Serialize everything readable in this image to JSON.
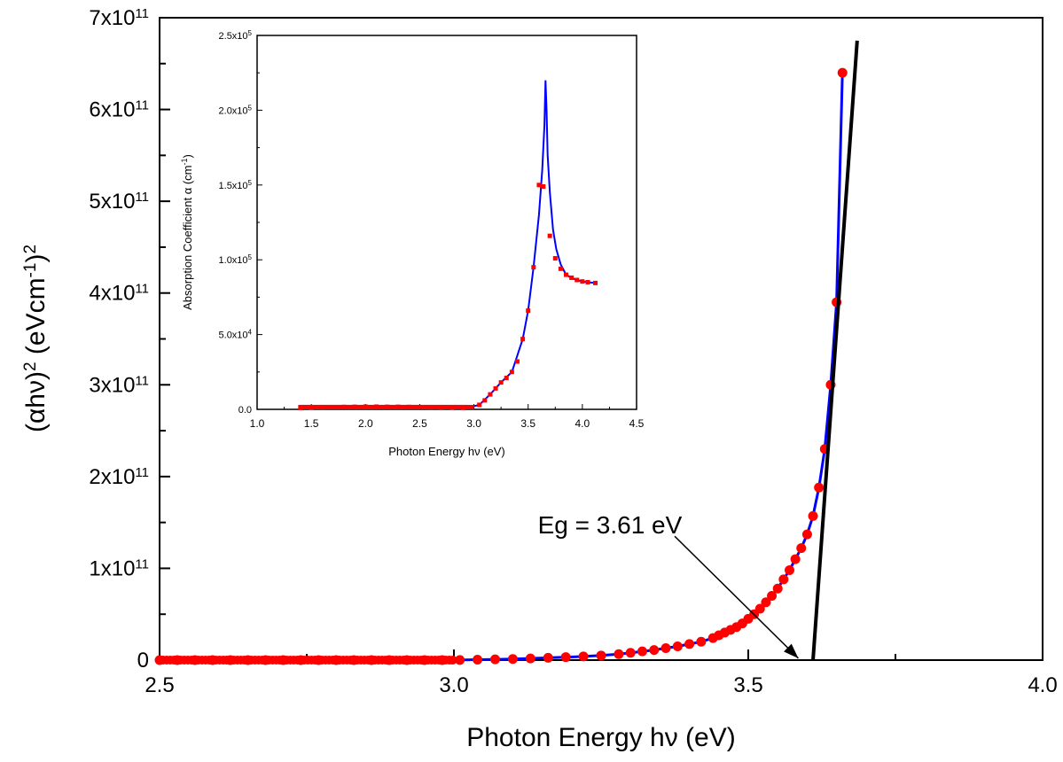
{
  "chart_data": [
    {
      "type": "scatter",
      "xlabel": "Photon Energy hν (eV)",
      "ylabel_main": "(αhν)",
      "ylabel_tail": " (eVcm",
      "xlim": [
        2.5,
        4.0
      ],
      "ylim": [
        0,
        700000000000.0
      ],
      "x_ticks": [
        2.5,
        3.0,
        3.5,
        4.0
      ],
      "x_tick_labels": [
        "2.5",
        "3.0",
        "3.5",
        "4.0"
      ],
      "y_ticks": [
        0,
        100000000000.0,
        200000000000.0,
        300000000000.0,
        400000000000.0,
        500000000000.0,
        600000000000.0,
        700000000000.0
      ],
      "y_tick_labels": [
        "0",
        "1x10",
        "2x10",
        "3x10",
        "4x10",
        "5x10",
        "6x10",
        "7x10"
      ],
      "y_tick_exponents": [
        "",
        "11",
        "11",
        "11",
        "11",
        "11",
        "11",
        "11"
      ],
      "colors": {
        "points": "#ff0000",
        "curve": "#0000ff",
        "fit_line": "#000000"
      },
      "series": [
        {
          "marker": "circle",
          "x": [
            2.5,
            2.53,
            2.56,
            2.59,
            2.62,
            2.65,
            2.68,
            2.71,
            2.74,
            2.77,
            2.8,
            2.83,
            2.86,
            2.89,
            2.92,
            2.95,
            2.98,
            3.01,
            3.04,
            3.07,
            3.1,
            3.13,
            3.16,
            3.19,
            3.22,
            3.25,
            3.28,
            3.3,
            3.32,
            3.34,
            3.36,
            3.38,
            3.4,
            3.42,
            3.44,
            3.45,
            3.46,
            3.47,
            3.48,
            3.49,
            3.5,
            3.51,
            3.52,
            3.53,
            3.54,
            3.55,
            3.56,
            3.57,
            3.58,
            3.59,
            3.6,
            3.61,
            3.62,
            3.63,
            3.64,
            3.65,
            3.66
          ],
          "y": [
            0,
            0,
            0,
            0,
            0,
            0,
            0,
            0,
            0,
            0,
            0,
            0,
            0,
            0,
            0,
            0,
            0,
            100000000.0,
            500000000.0,
            800000000.0,
            1200000000.0,
            1800000000.0,
            2500000000.0,
            3200000000.0,
            4000000000.0,
            5000000000.0,
            6500000000.0,
            8000000000.0,
            9500000000.0,
            11000000000.0,
            13000000000.0,
            15000000000.0,
            17500000000.0,
            20000000000.0,
            24000000000.0,
            27000000000.0,
            30000000000.0,
            33000000000.0,
            36000000000.0,
            40000000000.0,
            45000000000.0,
            50000000000.0,
            56000000000.0,
            63000000000.0,
            70000000000.0,
            78000000000.0,
            88000000000.0,
            98000000000.0,
            110000000000.0,
            122000000000.0,
            137000000000.0,
            157000000000.0,
            188000000000.0,
            230000000000.0,
            300000000000.0,
            390000000000.0,
            640000000000.0
          ]
        }
      ],
      "fit_line": {
        "x": [
          3.61,
          3.685
        ],
        "y": [
          0,
          675000000000.0
        ]
      },
      "annotation": {
        "text": "Eg = 3.61 eV",
        "x": 3.61,
        "y": 0,
        "label_x": 3.265,
        "label_y": 138000000000.0,
        "arrow_from": [
          3.375,
          135000000000.0
        ],
        "arrow_to": [
          3.585,
          2000000000.0
        ]
      }
    },
    {
      "type": "line",
      "inset": true,
      "xlabel": "Photon Energy hν (eV)",
      "ylabel": "Absorption Coefficient α (cm",
      "xlim": [
        1.0,
        4.5
      ],
      "ylim": [
        0,
        250000.0
      ],
      "x_ticks": [
        1.0,
        1.5,
        2.0,
        2.5,
        3.0,
        3.5,
        4.0,
        4.5
      ],
      "x_tick_labels": [
        "1.0",
        "1.5",
        "2.0",
        "2.5",
        "3.0",
        "3.5",
        "4.0",
        "4.5"
      ],
      "y_ticks": [
        0,
        50000.0,
        100000.0,
        150000.0,
        200000.0,
        250000.0
      ],
      "y_tick_labels": [
        "0.0",
        "5.0x10",
        "1.0x10",
        "1.5x10",
        "2.0x10",
        "2.5x10"
      ],
      "y_tick_exponents": [
        "",
        "4",
        "5",
        "5",
        "5",
        "5"
      ],
      "series": [
        {
          "marker": "square",
          "x": [
            1.4,
            1.5,
            1.6,
            1.7,
            1.8,
            1.9,
            2.0,
            2.1,
            2.2,
            2.3,
            2.4,
            2.5,
            2.6,
            2.7,
            2.8,
            2.9,
            2.98,
            3.05,
            3.1,
            3.15,
            3.2,
            3.25,
            3.3,
            3.35,
            3.4,
            3.45,
            3.5,
            3.55,
            3.6,
            3.64,
            3.7,
            3.75,
            3.8,
            3.85,
            3.9,
            3.95,
            4.0,
            4.05,
            4.12
          ],
          "y": [
            1000,
            1200,
            1400,
            1500,
            1600,
            1700,
            1800,
            1800,
            1700,
            1700,
            1600,
            1500,
            1400,
            1300,
            1200,
            1100,
            1500,
            3000,
            6000,
            10000,
            14000,
            18000,
            21000,
            25000,
            32000,
            47000,
            66000,
            95000,
            150000,
            149000,
            116000,
            101000,
            94000,
            90000,
            88000,
            86500,
            85500,
            85000,
            84500
          ]
        },
        {
          "name": "",
          "curve": true,
          "x": [
            1.4,
            2.0,
            2.6,
            2.95,
            3.05,
            3.15,
            3.25,
            3.35,
            3.45,
            3.5,
            3.55,
            3.6,
            3.63,
            3.65,
            3.66,
            3.67,
            3.68,
            3.7,
            3.73,
            3.76,
            3.8,
            3.85,
            3.9,
            3.95,
            4.0,
            4.05,
            4.12
          ],
          "y": [
            1000,
            1800,
            1400,
            1100,
            3000,
            10000,
            18000,
            25000,
            47000,
            66000,
            95000,
            130000,
            160000,
            190000,
            220000,
            200000,
            170000,
            145000,
            120000,
            107000,
            97000,
            90000,
            88000,
            86500,
            85500,
            85000,
            84500
          ]
        }
      ]
    }
  ]
}
